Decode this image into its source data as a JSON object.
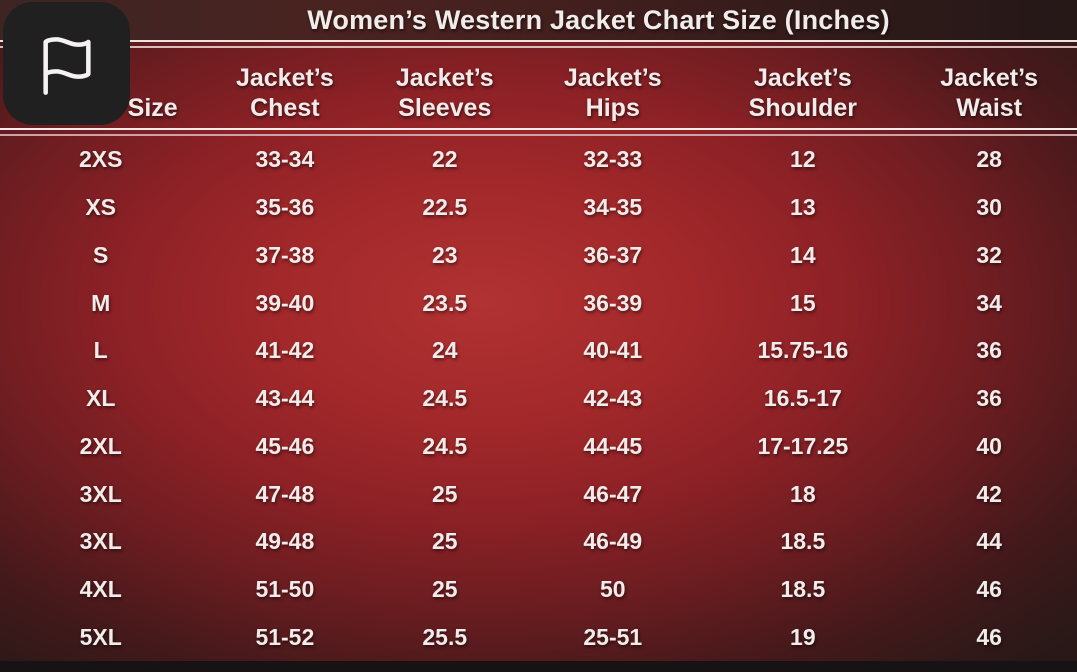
{
  "title": "Women’s Western Jacket Chart Size (Inches)",
  "flag_button": {
    "icon": "flag-icon"
  },
  "colors": {
    "background_center": "#a2282a",
    "background_edge": "#2f1b1a",
    "text": "#f1ecea",
    "separator_light": "#efe3e1",
    "separator_pink": "#d9bcbc",
    "flag_box": "#202021",
    "bottom_bar": "#171213"
  },
  "chart_data": {
    "type": "table",
    "title": "Women’s Western Jacket Chart Size (Inches)",
    "columns": [
      {
        "top": "",
        "bottom": "Size"
      },
      {
        "top": "Jacket’s",
        "bottom": "Chest"
      },
      {
        "top": "Jacket’s",
        "bottom": "Sleeves"
      },
      {
        "top": "Jacket’s",
        "bottom": "Hips"
      },
      {
        "top": "Jacket’s",
        "bottom": "Shoulder"
      },
      {
        "top": "Jacket’s",
        "bottom": "Waist"
      }
    ],
    "rows": [
      [
        "2XS",
        "33-34",
        "22",
        "32-33",
        "12",
        "28"
      ],
      [
        "XS",
        "35-36",
        "22.5",
        "34-35",
        "13",
        "30"
      ],
      [
        "S",
        "37-38",
        "23",
        "36-37",
        "14",
        "32"
      ],
      [
        "M",
        "39-40",
        "23.5",
        "36-39",
        "15",
        "34"
      ],
      [
        "L",
        "41-42",
        "24",
        "40-41",
        "15.75-16",
        "36"
      ],
      [
        "XL",
        "43-44",
        "24.5",
        "42-43",
        "16.5-17",
        "36"
      ],
      [
        "2XL",
        "45-46",
        "24.5",
        "44-45",
        "17-17.25",
        "40"
      ],
      [
        "3XL",
        "47-48",
        "25",
        "46-47",
        "18",
        "42"
      ],
      [
        "3XL",
        "49-48",
        "25",
        "46-49",
        "18.5",
        "44"
      ],
      [
        "4XL",
        "51-50",
        "25",
        "50",
        "18.5",
        "46"
      ],
      [
        "5XL",
        "51-52",
        "25.5",
        "25-51",
        "19",
        "46"
      ]
    ]
  }
}
